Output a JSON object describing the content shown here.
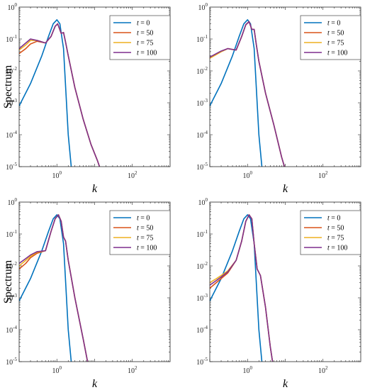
{
  "chart_data": [
    {
      "type": "line",
      "xscale": "log",
      "yscale": "log",
      "xlim": [
        0.1,
        1000
      ],
      "ylim": [
        1e-05,
        1
      ],
      "xlabel": "k",
      "ylabel": "Spectrum",
      "xticks": [
        {
          "base": "10",
          "exp": "0",
          "value": 1
        },
        {
          "base": "10",
          "exp": "2",
          "value": 100
        }
      ],
      "yticks": [
        {
          "base": "10",
          "exp": "-5",
          "value": 1e-05
        },
        {
          "base": "10",
          "exp": "-4",
          "value": 0.0001
        },
        {
          "base": "10",
          "exp": "-3",
          "value": 0.001
        },
        {
          "base": "10",
          "exp": "-2",
          "value": 0.01
        },
        {
          "base": "10",
          "exp": "-1",
          "value": 0.1
        },
        {
          "base": "10",
          "exp": "0",
          "value": 1
        }
      ],
      "legend_position": "top-right",
      "series": [
        {
          "name": "t = 0",
          "color": "#0072BD",
          "x": [
            0.1,
            0.2,
            0.4,
            0.6,
            0.8,
            1.0,
            1.2,
            1.5,
            2.0,
            2.4
          ],
          "y": [
            0.0008,
            0.004,
            0.03,
            0.12,
            0.3,
            0.4,
            0.3,
            0.05,
            0.0001,
            1e-05
          ]
        },
        {
          "name": "t = 50",
          "color": "#D95319",
          "x": [
            0.1,
            0.15,
            0.2,
            0.3,
            0.5,
            0.7,
            0.9,
            1.05,
            1.3,
            1.5,
            1.7,
            2.0,
            3.0,
            5.0,
            8.0,
            12.0,
            13.5
          ],
          "y": [
            0.035,
            0.05,
            0.07,
            0.085,
            0.075,
            0.12,
            0.25,
            0.3,
            0.15,
            0.16,
            0.08,
            0.03,
            0.003,
            0.0003,
            5e-05,
            1.5e-05,
            1e-05
          ]
        },
        {
          "name": "t = 75",
          "color": "#EDB120",
          "x": [
            0.1,
            0.15,
            0.2,
            0.3,
            0.5,
            0.7,
            0.9,
            1.05,
            1.3,
            1.5,
            1.7,
            2.0,
            3.0,
            5.0,
            8.0,
            12.0,
            13.5
          ],
          "y": [
            0.045,
            0.065,
            0.09,
            0.09,
            0.075,
            0.12,
            0.25,
            0.3,
            0.15,
            0.16,
            0.08,
            0.03,
            0.003,
            0.0003,
            5e-05,
            1.5e-05,
            1e-05
          ]
        },
        {
          "name": "t = 100",
          "color": "#7E2F8E",
          "x": [
            0.1,
            0.15,
            0.2,
            0.3,
            0.5,
            0.7,
            0.9,
            1.05,
            1.3,
            1.5,
            1.7,
            2.0,
            3.0,
            5.0,
            8.0,
            12.0,
            13.5
          ],
          "y": [
            0.05,
            0.075,
            0.1,
            0.09,
            0.075,
            0.12,
            0.25,
            0.3,
            0.15,
            0.16,
            0.08,
            0.03,
            0.003,
            0.0003,
            5e-05,
            1.5e-05,
            1e-05
          ]
        }
      ]
    },
    {
      "type": "line",
      "xscale": "log",
      "yscale": "log",
      "xlim": [
        0.1,
        1000
      ],
      "ylim": [
        1e-05,
        1
      ],
      "xlabel": "k",
      "ylabel": "",
      "xticks": [
        {
          "base": "10",
          "exp": "0",
          "value": 1
        },
        {
          "base": "10",
          "exp": "2",
          "value": 100
        }
      ],
      "yticks": [
        {
          "base": "10",
          "exp": "-5",
          "value": 1e-05
        },
        {
          "base": "10",
          "exp": "-4",
          "value": 0.0001
        },
        {
          "base": "10",
          "exp": "-3",
          "value": 0.001
        },
        {
          "base": "10",
          "exp": "-2",
          "value": 0.01
        },
        {
          "base": "10",
          "exp": "-1",
          "value": 0.1
        },
        {
          "base": "10",
          "exp": "0",
          "value": 1
        }
      ],
      "legend_position": "top-right",
      "series": [
        {
          "name": "t = 0",
          "color": "#0072BD",
          "x": [
            0.1,
            0.2,
            0.4,
            0.6,
            0.8,
            1.0,
            1.2,
            1.5,
            2.0,
            2.4
          ],
          "y": [
            0.0008,
            0.004,
            0.03,
            0.12,
            0.3,
            0.4,
            0.3,
            0.05,
            0.0001,
            1e-05
          ]
        },
        {
          "name": "t = 50",
          "color": "#D95319",
          "x": [
            0.1,
            0.2,
            0.3,
            0.5,
            0.7,
            0.9,
            1.1,
            1.3,
            1.5,
            1.7,
            2.0,
            3.0,
            5.0,
            8.0,
            9.5
          ],
          "y": [
            0.025,
            0.04,
            0.05,
            0.045,
            0.12,
            0.28,
            0.35,
            0.2,
            0.2,
            0.07,
            0.02,
            0.002,
            0.0002,
            2e-05,
            1e-05
          ]
        },
        {
          "name": "t = 75",
          "color": "#EDB120",
          "x": [
            0.1,
            0.2,
            0.3,
            0.5,
            0.7,
            0.9,
            1.1,
            1.3,
            1.5,
            1.7,
            2.0,
            3.0,
            5.0,
            8.0,
            9.5
          ],
          "y": [
            0.025,
            0.04,
            0.05,
            0.045,
            0.12,
            0.28,
            0.35,
            0.2,
            0.2,
            0.07,
            0.02,
            0.002,
            0.0002,
            2e-05,
            1e-05
          ]
        },
        {
          "name": "t = 100",
          "color": "#7E2F8E",
          "x": [
            0.1,
            0.2,
            0.3,
            0.5,
            0.7,
            0.9,
            1.1,
            1.3,
            1.5,
            1.7,
            2.0,
            3.0,
            5.0,
            8.0,
            9.5
          ],
          "y": [
            0.027,
            0.042,
            0.05,
            0.045,
            0.12,
            0.28,
            0.35,
            0.2,
            0.2,
            0.07,
            0.02,
            0.002,
            0.0002,
            2e-05,
            1e-05
          ]
        }
      ]
    },
    {
      "type": "line",
      "xscale": "log",
      "yscale": "log",
      "xlim": [
        0.1,
        1000
      ],
      "ylim": [
        1e-05,
        1
      ],
      "xlabel": "k",
      "ylabel": "Spectrum",
      "xticks": [
        {
          "base": "10",
          "exp": "0",
          "value": 1
        },
        {
          "base": "10",
          "exp": "2",
          "value": 100
        }
      ],
      "yticks": [
        {
          "base": "10",
          "exp": "-5",
          "value": 1e-05
        },
        {
          "base": "10",
          "exp": "-4",
          "value": 0.0001
        },
        {
          "base": "10",
          "exp": "-3",
          "value": 0.001
        },
        {
          "base": "10",
          "exp": "-2",
          "value": 0.01
        },
        {
          "base": "10",
          "exp": "-1",
          "value": 0.1
        },
        {
          "base": "10",
          "exp": "0",
          "value": 1
        }
      ],
      "legend_position": "top-right",
      "series": [
        {
          "name": "t = 0",
          "color": "#0072BD",
          "x": [
            0.1,
            0.2,
            0.4,
            0.6,
            0.8,
            1.0,
            1.2,
            1.5,
            2.0,
            2.4
          ],
          "y": [
            0.0008,
            0.004,
            0.03,
            0.12,
            0.3,
            0.4,
            0.3,
            0.05,
            0.0001,
            1e-05
          ]
        },
        {
          "name": "t = 50",
          "color": "#D95319",
          "x": [
            0.1,
            0.15,
            0.2,
            0.3,
            0.5,
            0.7,
            0.9,
            1.1,
            1.3,
            1.5,
            1.7,
            2.0,
            3.0,
            5.0,
            6.5
          ],
          "y": [
            0.008,
            0.012,
            0.018,
            0.025,
            0.03,
            0.12,
            0.3,
            0.4,
            0.25,
            0.08,
            0.06,
            0.015,
            0.001,
            5e-05,
            1e-05
          ]
        },
        {
          "name": "t = 75",
          "color": "#EDB120",
          "x": [
            0.1,
            0.15,
            0.2,
            0.3,
            0.5,
            0.7,
            0.9,
            1.1,
            1.3,
            1.5,
            1.7,
            2.0,
            3.0,
            5.0,
            6.5
          ],
          "y": [
            0.01,
            0.015,
            0.02,
            0.027,
            0.03,
            0.12,
            0.3,
            0.4,
            0.25,
            0.08,
            0.06,
            0.015,
            0.001,
            5e-05,
            1e-05
          ]
        },
        {
          "name": "t = 100",
          "color": "#7E2F8E",
          "x": [
            0.1,
            0.15,
            0.2,
            0.3,
            0.5,
            0.7,
            0.9,
            1.1,
            1.3,
            1.5,
            1.7,
            2.0,
            3.0,
            5.0,
            6.5
          ],
          "y": [
            0.012,
            0.017,
            0.022,
            0.028,
            0.03,
            0.12,
            0.3,
            0.4,
            0.25,
            0.08,
            0.06,
            0.015,
            0.001,
            5e-05,
            1e-05
          ]
        }
      ]
    },
    {
      "type": "line",
      "xscale": "log",
      "yscale": "log",
      "xlim": [
        0.1,
        1000
      ],
      "ylim": [
        1e-05,
        1
      ],
      "xlabel": "k",
      "ylabel": "",
      "xticks": [
        {
          "base": "10",
          "exp": "0",
          "value": 1
        },
        {
          "base": "10",
          "exp": "2",
          "value": 100
        }
      ],
      "yticks": [
        {
          "base": "10",
          "exp": "-5",
          "value": 1e-05
        },
        {
          "base": "10",
          "exp": "-4",
          "value": 0.0001
        },
        {
          "base": "10",
          "exp": "-3",
          "value": 0.001
        },
        {
          "base": "10",
          "exp": "-2",
          "value": 0.01
        },
        {
          "base": "10",
          "exp": "-1",
          "value": 0.1
        },
        {
          "base": "10",
          "exp": "0",
          "value": 1
        }
      ],
      "legend_position": "top-right",
      "series": [
        {
          "name": "t = 0",
          "color": "#0072BD",
          "x": [
            0.1,
            0.2,
            0.4,
            0.6,
            0.8,
            1.0,
            1.2,
            1.5,
            2.0,
            2.4
          ],
          "y": [
            0.0008,
            0.004,
            0.03,
            0.12,
            0.3,
            0.4,
            0.3,
            0.05,
            0.0001,
            1e-05
          ]
        },
        {
          "name": "t = 50",
          "color": "#D95319",
          "x": [
            0.1,
            0.15,
            0.2,
            0.3,
            0.5,
            0.7,
            0.9,
            1.1,
            1.3,
            1.5,
            1.8,
            2.2,
            3.0,
            4.0,
            4.6
          ],
          "y": [
            0.002,
            0.003,
            0.004,
            0.006,
            0.015,
            0.06,
            0.25,
            0.4,
            0.3,
            0.05,
            0.008,
            0.005,
            0.0005,
            3e-05,
            1e-05
          ]
        },
        {
          "name": "t = 75",
          "color": "#EDB120",
          "x": [
            0.1,
            0.15,
            0.2,
            0.3,
            0.5,
            0.7,
            0.9,
            1.1,
            1.3,
            1.5,
            1.8,
            2.2,
            3.0,
            4.0,
            4.6
          ],
          "y": [
            0.003,
            0.004,
            0.005,
            0.007,
            0.015,
            0.06,
            0.25,
            0.4,
            0.3,
            0.05,
            0.008,
            0.005,
            0.0005,
            3e-05,
            1e-05
          ]
        },
        {
          "name": "t = 100",
          "color": "#7E2F8E",
          "x": [
            0.1,
            0.15,
            0.2,
            0.3,
            0.5,
            0.7,
            0.9,
            1.1,
            1.3,
            1.5,
            1.8,
            2.2,
            3.0,
            4.0,
            4.6
          ],
          "y": [
            0.0025,
            0.0035,
            0.0045,
            0.0065,
            0.015,
            0.06,
            0.25,
            0.4,
            0.3,
            0.05,
            0.008,
            0.005,
            0.0005,
            3e-05,
            1e-05
          ]
        }
      ]
    }
  ]
}
